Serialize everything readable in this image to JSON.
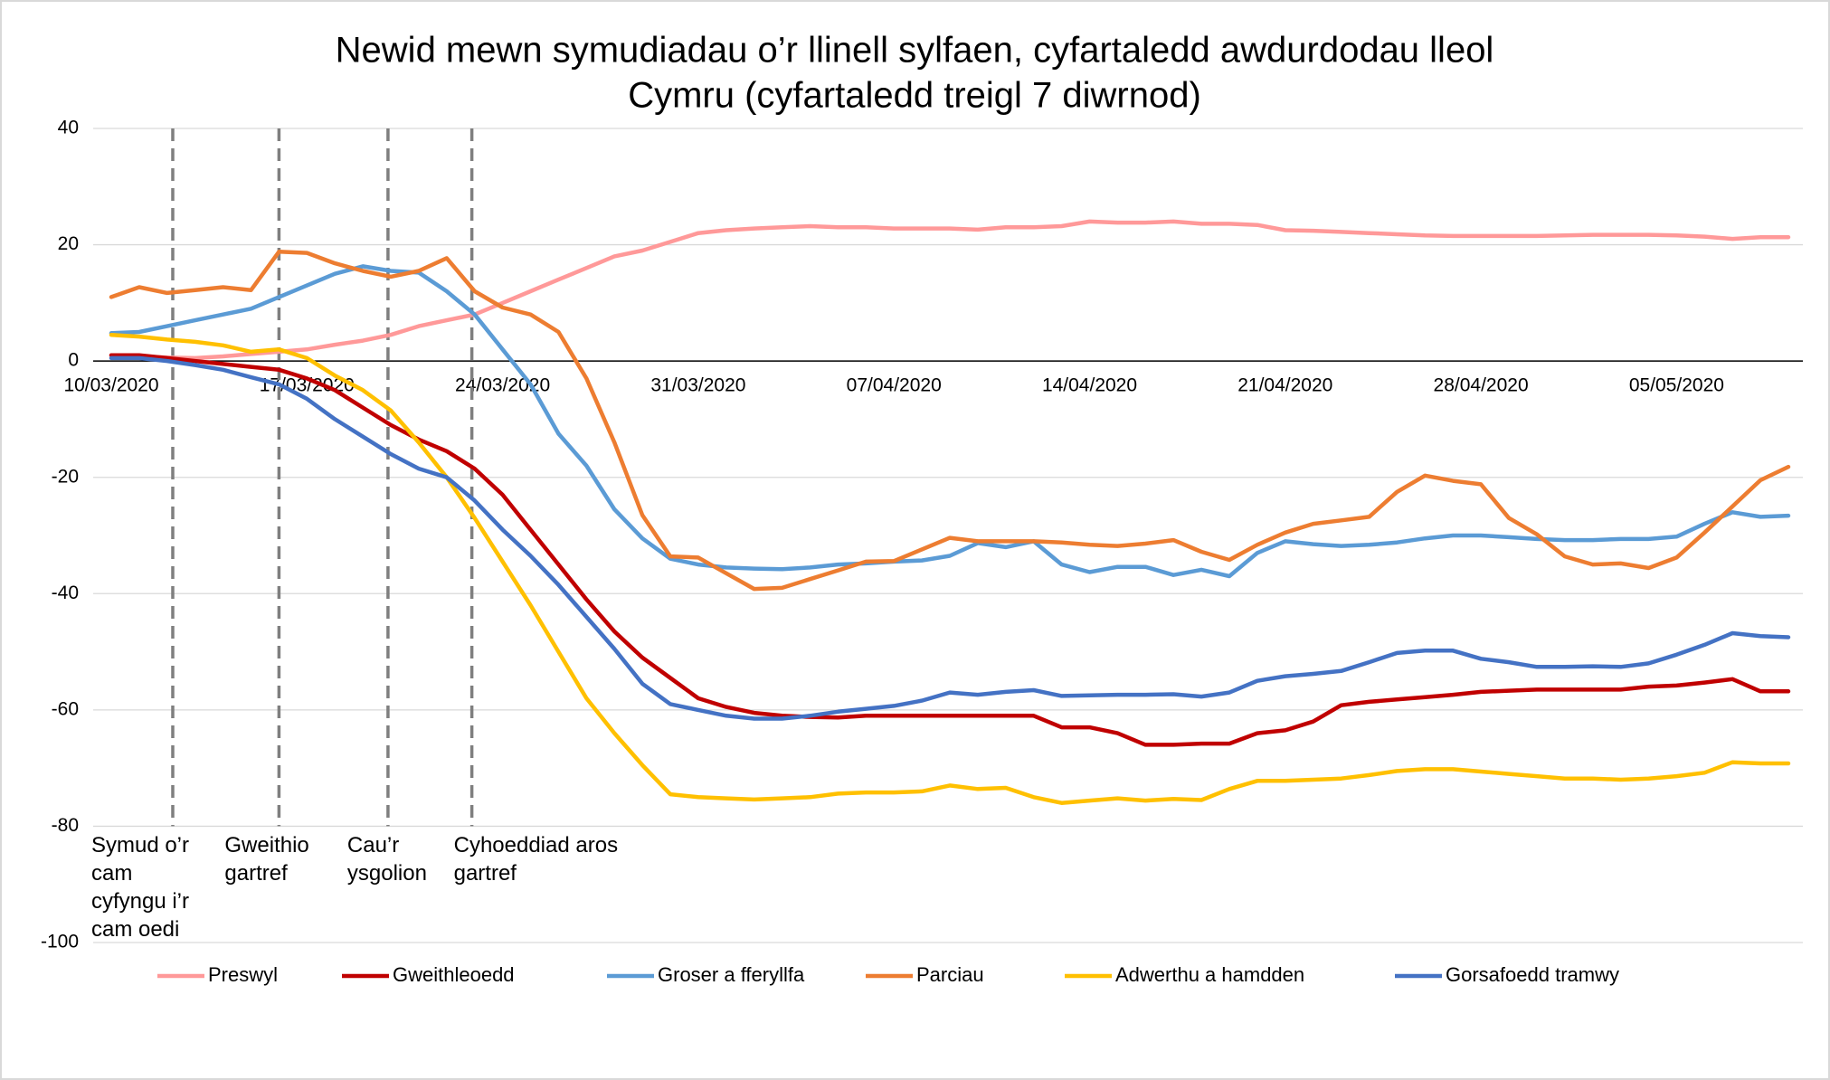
{
  "chart_data": {
    "type": "line",
    "title": [
      "Newid mewn symudiadau o’r llinell sylfaen, cyfartaledd awdurdodau lleol",
      "Cymru (cyfartaledd treigl 7 diwrnod)"
    ],
    "categories": [
      "10/03/2020",
      null,
      null,
      null,
      null,
      null,
      null,
      "17/03/2020",
      null,
      null,
      null,
      null,
      null,
      null,
      "24/03/2020",
      null,
      null,
      null,
      null,
      null,
      null,
      "31/03/2020",
      null,
      null,
      null,
      null,
      null,
      null,
      "07/04/2020",
      null,
      null,
      null,
      null,
      null,
      null,
      "14/04/2020",
      null,
      null,
      null,
      null,
      null,
      null,
      "21/04/2020",
      null,
      null,
      null,
      null,
      null,
      null,
      "28/04/2020",
      null,
      null,
      null,
      null,
      null,
      null,
      "05/05/2020",
      null,
      null,
      null,
      null
    ],
    "ylim": [
      -100,
      40
    ],
    "yticks": [
      -100,
      -80,
      -60,
      -40,
      -20,
      0,
      20,
      40
    ],
    "grid": true,
    "legend": "bottom",
    "series": [
      {
        "name": "Preswyl",
        "color": "#ff9999",
        "values": [
          1,
          0.8,
          0.6,
          0.5,
          0.8,
          1.2,
          1.6,
          2,
          2.8,
          3.5,
          4.5,
          6,
          7,
          8,
          10,
          12,
          14,
          16,
          18,
          19,
          20.5,
          22,
          22.5,
          22.8,
          23,
          23.2,
          23,
          23,
          22.8,
          22.8,
          22.8,
          22.6,
          23,
          23,
          23.2,
          24,
          23.8,
          23.8,
          24,
          23.6,
          23.6,
          23.4,
          22.5,
          22.4,
          22.2,
          22,
          21.8,
          21.6,
          21.5,
          21.5,
          21.5,
          21.5,
          21.6,
          21.7,
          21.7,
          21.7,
          21.6,
          21.4,
          21,
          21.3,
          21.3
        ]
      },
      {
        "name": "Gweithleoedd",
        "color": "#c00000",
        "values": [
          1,
          1,
          0.5,
          0,
          -0.5,
          -1,
          -1.5,
          -3,
          -5,
          -8,
          -11,
          -13.5,
          -15.5,
          -18.5,
          -23,
          -29,
          -35,
          -41,
          -46.5,
          -51,
          -54.5,
          -58,
          -59.5,
          -60.5,
          -61,
          -61.2,
          -61.3,
          -61,
          -61,
          -61,
          -61,
          -61,
          -61,
          -61,
          -63,
          -63,
          -64,
          -66,
          -66,
          -65.8,
          -65.8,
          -64,
          -63.5,
          -62,
          -59.2,
          -58.6,
          -58.2,
          -57.8,
          -57.4,
          -56.9,
          -56.7,
          -56.5,
          -56.5,
          -56.5,
          -56.5,
          -56,
          -55.8,
          -55.3,
          -54.7,
          -56.8,
          -56.8
        ]
      },
      {
        "name": "Groser a fferyllfa",
        "color": "#5b9bd5",
        "values": [
          4.8,
          5,
          6,
          7,
          8,
          9,
          11,
          13,
          15,
          16.3,
          15.5,
          15.2,
          12,
          8,
          2,
          -4,
          -12.5,
          -18,
          -25.5,
          -30.5,
          -34,
          -35,
          -35.5,
          -35.7,
          -35.8,
          -35.5,
          -35,
          -34.8,
          -34.5,
          -34.3,
          -33.5,
          -31.3,
          -32,
          -31,
          -35,
          -36.3,
          -35.4,
          -35.4,
          -36.8,
          -35.9,
          -37,
          -33,
          -31,
          -31.5,
          -31.8,
          -31.6,
          -31.2,
          -30.5,
          -30,
          -30,
          -30.3,
          -30.6,
          -30.8,
          -30.8,
          -30.6,
          -30.6,
          -30.2,
          -28,
          -26,
          -26.8,
          -26.6
        ]
      },
      {
        "name": "Parciau",
        "color": "#ed7d31",
        "values": [
          11,
          12.7,
          11.7,
          12.2,
          12.7,
          12.2,
          18.8,
          18.6,
          16.8,
          15.5,
          14.5,
          15.5,
          17.7,
          12,
          9.2,
          8,
          5,
          -3,
          -14,
          -26.5,
          -33.6,
          -33.8,
          -36.5,
          -39.2,
          -39,
          -37.5,
          -36,
          -34.5,
          -34.4,
          -32.4,
          -30.4,
          -31,
          -31,
          -31,
          -31.2,
          -31.6,
          -31.8,
          -31.4,
          -30.8,
          -32.8,
          -34.2,
          -31.6,
          -29.5,
          -28,
          -27.4,
          -26.8,
          -22.5,
          -19.7,
          -20.6,
          -21.2,
          -27,
          -29.8,
          -33.6,
          -35,
          -34.8,
          -35.6,
          -33.8,
          -29.5,
          -25,
          -20.5,
          -18.2
        ]
      },
      {
        "name": "Adwerthu a hamdden",
        "color": "#ffc000",
        "values": [
          4.5,
          4.2,
          3.7,
          3.3,
          2.7,
          1.6,
          2,
          0.5,
          -2.5,
          -5,
          -8.5,
          -14,
          -20,
          -27,
          -34.5,
          -42,
          -50,
          -58,
          -64,
          -69.5,
          -74.5,
          -75,
          -75.2,
          -75.4,
          -75.2,
          -75,
          -74.4,
          -74.2,
          -74.2,
          -74,
          -73,
          -73.6,
          -73.4,
          -75,
          -76,
          -75.6,
          -75.2,
          -75.6,
          -75.3,
          -75.5,
          -73.6,
          -72.2,
          -72.2,
          -72,
          -71.8,
          -71.2,
          -70.5,
          -70.2,
          -70.2,
          -70.6,
          -71,
          -71.4,
          -71.8,
          -71.8,
          -72,
          -71.8,
          -71.4,
          -70.8,
          -69,
          -69.2,
          -69.2
        ]
      },
      {
        "name": "Gorsafoedd tramwy",
        "color": "#4472c4",
        "values": [
          0.5,
          0.5,
          0,
          -0.7,
          -1.5,
          -2.8,
          -4,
          -6.5,
          -10,
          -13,
          -16,
          -18.5,
          -20,
          -24,
          -29,
          -33.5,
          -38.5,
          -44,
          -49.5,
          -55.5,
          -59,
          -60,
          -61,
          -61.5,
          -61.5,
          -61,
          -60.3,
          -59.8,
          -59.3,
          -58.4,
          -57,
          -57.4,
          -56.9,
          -56.6,
          -57.6,
          -57.5,
          -57.4,
          -57.4,
          -57.3,
          -57.7,
          -57,
          -55,
          -54.2,
          -53.8,
          -53.3,
          -51.8,
          -50.2,
          -49.8,
          -49.8,
          -51.2,
          -51.8,
          -52.6,
          -52.6,
          -52.5,
          -52.6,
          -52,
          -50.5,
          -48.8,
          -46.8,
          -47.3,
          -47.5
        ]
      }
    ],
    "annotations": [
      {
        "x": 2.2,
        "text": [
          "Symud o’r",
          "cam",
          "cyfyngu i’r",
          "cam oedi"
        ]
      },
      {
        "x": 6.0,
        "text": [
          "Gweithio",
          "gartref"
        ]
      },
      {
        "x": 9.9,
        "text": [
          "Cau’r",
          "ysgolion"
        ]
      },
      {
        "x": 12.9,
        "text": [
          "Cyhoeddiad aros",
          "gartref"
        ]
      }
    ]
  }
}
